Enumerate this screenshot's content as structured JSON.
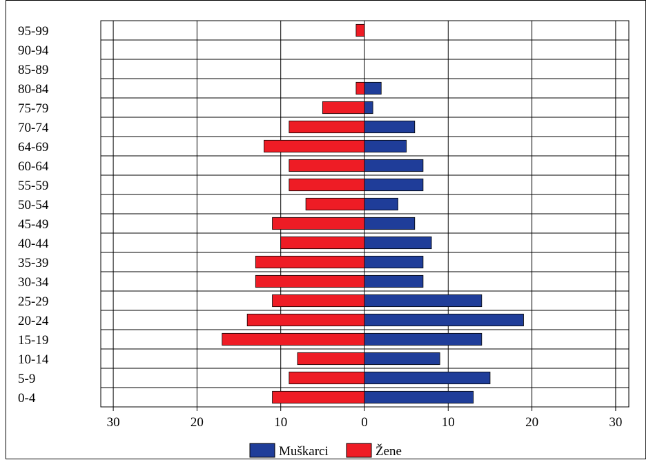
{
  "chart_data": {
    "type": "bar",
    "orientation": "horizontal",
    "layout": "population-pyramid",
    "categories": [
      "0-4",
      "5-9",
      "10-14",
      "15-19",
      "20-24",
      "25-29",
      "30-34",
      "35-39",
      "40-44",
      "45-49",
      "50-54",
      "55-59",
      "60-64",
      "64-69",
      "70-74",
      "75-79",
      "80-84",
      "85-89",
      "90-94",
      "95-99"
    ],
    "series": [
      {
        "name": "Muškarci",
        "color": "#1f3d99",
        "side": "right",
        "values": [
          13,
          15,
          9,
          14,
          19,
          14,
          7,
          7,
          8,
          6,
          4,
          7,
          7,
          5,
          6,
          1,
          2,
          0,
          0,
          0
        ]
      },
      {
        "name": "Žene",
        "color": "#ee1c25",
        "side": "left",
        "values": [
          11,
          9,
          8,
          17,
          14,
          11,
          13,
          13,
          10,
          11,
          7,
          9,
          9,
          12,
          9,
          5,
          1,
          0,
          0,
          1
        ]
      }
    ],
    "xlim": [
      -30,
      30
    ],
    "x_ticks": [
      -30,
      -20,
      -10,
      0,
      10,
      20,
      30
    ],
    "x_tick_labels": [
      "30",
      "20",
      "10",
      "0",
      "10",
      "20",
      "30"
    ],
    "grid": true,
    "legend_position": "bottom-center",
    "title": "",
    "xlabel": "",
    "ylabel": ""
  }
}
